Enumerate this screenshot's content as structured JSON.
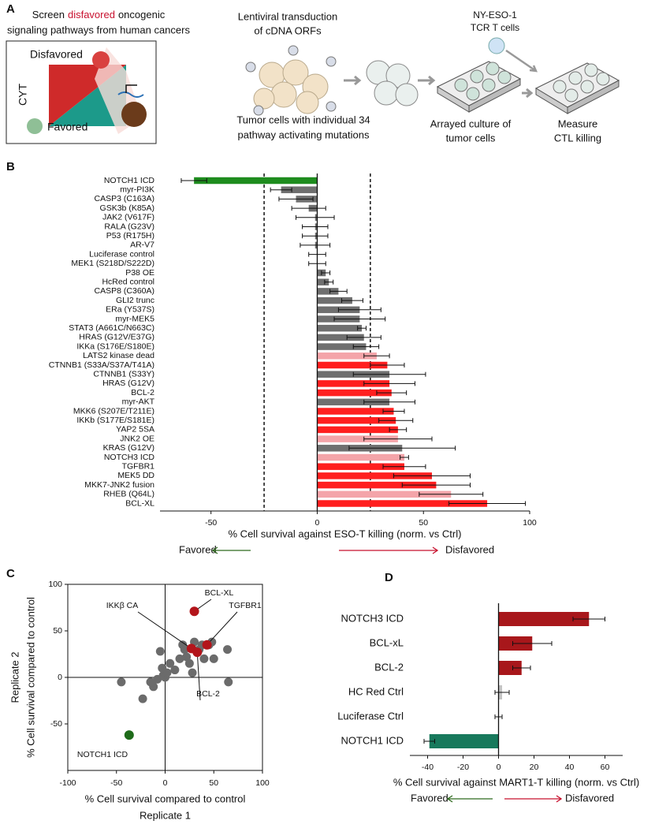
{
  "panel_a": {
    "label": "A",
    "title_line1": [
      "Screen",
      "disfavored",
      "oncogenic"
    ],
    "title_line2": "signaling pathways from human cancers",
    "disfavored": "Disfavored",
    "axis": "CYT",
    "favored": "Favored",
    "transduction": [
      "Lentiviral transduction",
      "of cDNA ORFs"
    ],
    "tumor_cells": [
      "Tumor cells with individual 34",
      "pathway activating mutations"
    ],
    "t_cells": [
      "NY-ESO-1",
      "TCR T cells"
    ],
    "culture": [
      "Arrayed culture of",
      "tumor cells"
    ],
    "measure": [
      "Measure",
      "CTL killing"
    ]
  },
  "chart_data": [
    {
      "panel": "B",
      "type": "hbar",
      "categories": [
        "NOTCH1 ICD",
        "myr-PI3K",
        "CASP3 (C163A)",
        "GSK3b (K85A)",
        "JAK2 (V617F)",
        "RALA (G23V)",
        "P53 (R175H)",
        "AR-V7",
        "Luciferase control",
        "MEK1 (S218D/S222D)",
        "P38 OE",
        "HcRed control",
        "CASP8 (C360A)",
        "GLI2 trunc",
        "ERa (Y537S)",
        "myr-MEK5",
        "STAT3 (A661C/N663C)",
        "HRAS (G12V/E37G)",
        "IKKa (S176E/S180E)",
        "LATS2 kinase dead",
        "CTNNB1 (S33A/S37A/T41A)",
        "CTNNB1 (S33Y)",
        "HRAS (G12V)",
        "BCL-2",
        "myr-AKT",
        "MKK6 (S207E/T211E)",
        "IKKb (S177E/S181E)",
        "YAP2 5SA",
        "JNK2 OE",
        "KRAS (G12V)",
        "NOTCH3 ICD",
        "TGFBR1",
        "MEK5 DD",
        "MKK7-JNK2 fusion",
        "RHEB (Q64L)",
        "BCL-XL"
      ],
      "values": [
        -58,
        -17,
        -10,
        -4,
        -1,
        -1,
        -1,
        -1,
        0,
        0,
        4,
        5.5,
        10,
        16.5,
        20,
        20,
        21,
        22,
        23,
        28,
        33,
        34,
        34,
        35,
        34,
        36,
        37,
        38,
        38,
        40,
        41,
        41,
        54,
        56,
        63,
        80
      ],
      "errors": [
        6,
        5,
        8,
        8,
        9,
        6,
        6,
        7,
        4,
        4,
        2,
        2,
        4,
        5,
        10,
        12,
        2,
        8,
        6,
        6,
        8,
        17,
        12,
        7,
        12,
        5,
        8,
        4,
        16,
        25,
        2,
        10,
        18,
        16,
        15,
        18
      ],
      "colors": [
        "#1e8c1e",
        "#6f6f6f",
        "#6f6f6f",
        "#6f6f6f",
        "#6f6f6f",
        "#6f6f6f",
        "#6f6f6f",
        "#6f6f6f",
        "#6f6f6f",
        "#6f6f6f",
        "#6f6f6f",
        "#6f6f6f",
        "#6f6f6f",
        "#6f6f6f",
        "#6f6f6f",
        "#6f6f6f",
        "#6f6f6f",
        "#6f6f6f",
        "#6f6f6f",
        "#f4a4a9",
        "#ff1f1f",
        "#6f6f6f",
        "#ff1f1f",
        "#ff1f1f",
        "#6f6f6f",
        "#ff1f1f",
        "#ff1f1f",
        "#ff1f1f",
        "#f4a4a9",
        "#6f6f6f",
        "#f4a4a9",
        "#ff1f1f",
        "#ff1f1f",
        "#ff1f1f",
        "#f4a4a9",
        "#ff1f1f"
      ],
      "xlim": [
        -74,
        100
      ],
      "xticks": [
        -50,
        0,
        50,
        100
      ],
      "reference_lines": [
        -25,
        25
      ],
      "xlabel": "% Cell survival against ESO-T killing (norm. vs Ctrl)",
      "favored": "Favored",
      "favored_color": "#2f6a1e",
      "disfavored": "Disfavored",
      "disfavored_color": "#c8102e"
    },
    {
      "panel": "C",
      "type": "scatter",
      "x": [
        -45,
        -23,
        -12,
        -8,
        -2,
        0,
        2,
        -3,
        -5,
        5,
        10,
        15,
        18,
        20,
        22,
        25,
        28,
        30,
        35,
        38,
        40,
        45,
        50,
        64,
        65,
        48,
        -15
      ],
      "y": [
        -5,
        -23,
        -10,
        -2,
        2,
        0,
        5,
        10,
        28,
        15,
        8,
        20,
        35,
        30,
        22,
        15,
        5,
        38,
        30,
        35,
        20,
        35,
        20,
        30,
        -5,
        38,
        -5
      ],
      "color": "#6b6b6b",
      "highlights": [
        {
          "label": "IKKβ CA",
          "x": 27,
          "y": 31,
          "color": "#b3151b"
        },
        {
          "label": "BCL-XL",
          "x": 30,
          "y": 71,
          "color": "#b3151b"
        },
        {
          "label": "TGFBR1",
          "x": 43,
          "y": 35,
          "color": "#b3151b"
        },
        {
          "label": "BCL-2",
          "x": 33,
          "y": 27,
          "color": "#b3151b"
        },
        {
          "label": "NOTCH1 ICD",
          "x": -37,
          "y": -62,
          "color": "#1f6b1a"
        }
      ],
      "xlim": [
        -100,
        100
      ],
      "ylim": [
        -100,
        100
      ],
      "xticks": [
        -100,
        -50,
        0,
        50,
        100
      ],
      "yticks": [
        -50,
        0,
        50,
        100
      ],
      "xlabel": [
        "% Cell survival compared to control",
        "Replicate 1"
      ],
      "ylabel": [
        "Replicate 2",
        "% Cell survival compared to control"
      ]
    },
    {
      "panel": "D",
      "type": "hbar",
      "categories": [
        "NOTCH3 ICD",
        "BCL-xL",
        "BCL-2",
        "HC Red Ctrl",
        "Luciferase Ctrl",
        "NOTCH1 ICD"
      ],
      "values": [
        51,
        19,
        13,
        2,
        0,
        -39
      ],
      "errors": [
        9,
        11,
        5,
        4,
        2,
        3
      ],
      "colors": [
        "#a8171b",
        "#a8171b",
        "#a8171b",
        "#c4c4c4",
        "#c4c4c4",
        "#18795c"
      ],
      "xlim": [
        -50,
        70
      ],
      "xticks": [
        -40,
        -20,
        0,
        20,
        40,
        60
      ],
      "xlabel": "% Cell survival against MART1-T killing (norm. vs Ctrl)",
      "favored": "Favored",
      "favored_color": "#2f6a1e",
      "disfavored": "Disfavored",
      "disfavored_color": "#c8102e"
    }
  ]
}
